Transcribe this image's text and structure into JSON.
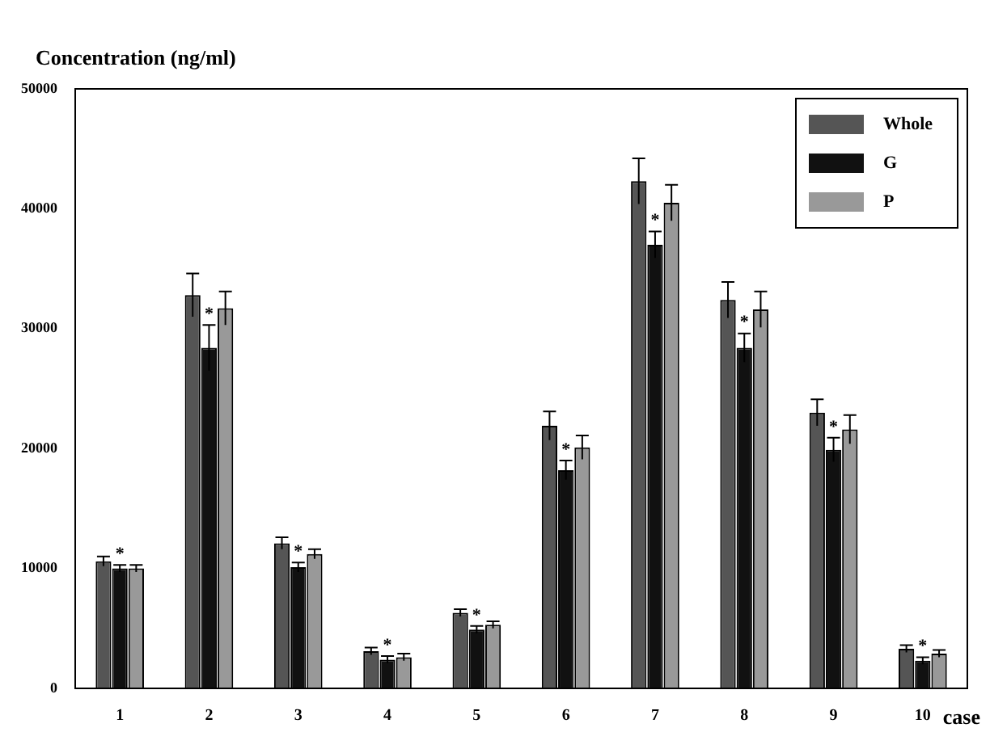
{
  "chart_data": {
    "type": "bar",
    "ylabel": "Concentration (ng/ml)",
    "xlabel": "case",
    "categories": [
      "1",
      "2",
      "3",
      "4",
      "5",
      "6",
      "7",
      "8",
      "9",
      "10"
    ],
    "series": [
      {
        "name": "Whole",
        "color": "#555555",
        "values": [
          10600,
          32800,
          12100,
          3100,
          6300,
          21900,
          42300,
          32400,
          23000,
          3300
        ],
        "errors": [
          400,
          1800,
          500,
          300,
          300,
          1200,
          1900,
          1500,
          1100,
          300
        ]
      },
      {
        "name": "G",
        "color": "#111111",
        "values": [
          10000,
          28400,
          10100,
          2400,
          4900,
          18200,
          37000,
          28400,
          19900,
          2300
        ],
        "errors": [
          300,
          1900,
          400,
          300,
          300,
          800,
          1100,
          1200,
          1000,
          300
        ]
      },
      {
        "name": "P",
        "color": "#999999",
        "values": [
          10000,
          31700,
          11200,
          2600,
          5300,
          20100,
          40500,
          31600,
          21600,
          2900
        ],
        "errors": [
          300,
          1400,
          400,
          300,
          300,
          1000,
          1500,
          1500,
          1200,
          300
        ]
      }
    ],
    "ylim": [
      0,
      50000
    ],
    "yticks": [
      0,
      10000,
      20000,
      30000,
      40000,
      50000
    ],
    "grid": false,
    "legend": "top right",
    "annotations": [
      {
        "text": "*",
        "x": "1",
        "y": 10300
      },
      {
        "text": "*",
        "x": "2",
        "y": 30300
      },
      {
        "text": "*",
        "x": "3",
        "y": 10500
      },
      {
        "text": "*",
        "x": "4",
        "y": 2700
      },
      {
        "text": "*",
        "x": "5",
        "y": 5200
      },
      {
        "text": "*",
        "x": "6",
        "y": 19000
      },
      {
        "text": "*",
        "x": "7",
        "y": 38100
      },
      {
        "text": "*",
        "x": "8",
        "y": 29600
      },
      {
        "text": "*",
        "x": "9",
        "y": 20900
      },
      {
        "text": "*",
        "x": "10",
        "y": 2600
      }
    ]
  }
}
